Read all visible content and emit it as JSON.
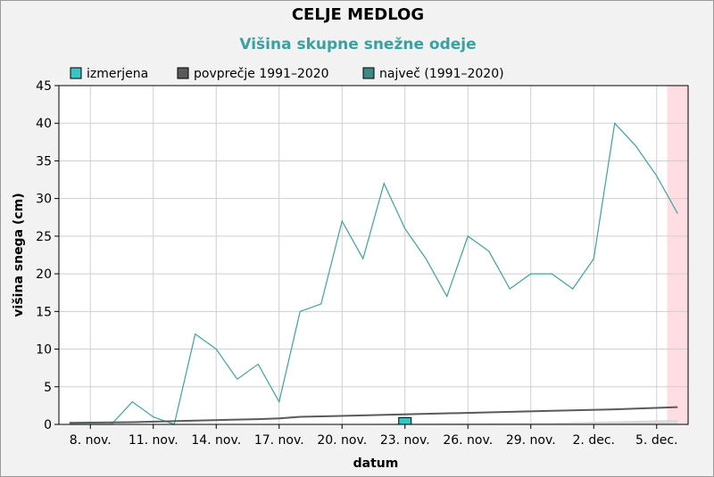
{
  "chart_data": {
    "type": "line",
    "title": "CELJE MEDLOG",
    "subtitle": "Višina skupne snežne odeje",
    "xlabel": "datum",
    "ylabel": "višina snega (cm)",
    "ylim": [
      0,
      45
    ],
    "yticks": [
      0,
      5,
      10,
      15,
      20,
      25,
      30,
      35,
      40,
      45
    ],
    "xticks": [
      {
        "day": 8,
        "label": "8. nov."
      },
      {
        "day": 11,
        "label": "11. nov."
      },
      {
        "day": 14,
        "label": "14. nov."
      },
      {
        "day": 17,
        "label": "17. nov."
      },
      {
        "day": 20,
        "label": "20. nov."
      },
      {
        "day": 23,
        "label": "23. nov."
      },
      {
        "day": 26,
        "label": "26. nov."
      },
      {
        "day": 29,
        "label": "29. nov."
      },
      {
        "day": 32,
        "label": "2. dec."
      },
      {
        "day": 35,
        "label": "5. dec."
      }
    ],
    "grid": true,
    "legend_position": "top",
    "highlight_region": {
      "from_day": 35.5,
      "to_day": 36.5,
      "color": "#ffdde3"
    },
    "series": [
      {
        "name": "izmerjena",
        "color": "#3fa39c",
        "legend_color": "#38c4c4",
        "points": [
          [
            7,
            0
          ],
          [
            8,
            0
          ],
          [
            9,
            0
          ],
          [
            10,
            3
          ],
          [
            11,
            1
          ],
          [
            12,
            0
          ],
          [
            13,
            12
          ],
          [
            14,
            10
          ],
          [
            15,
            6
          ],
          [
            16,
            8
          ],
          [
            17,
            3
          ],
          [
            18,
            15
          ],
          [
            19,
            16
          ],
          [
            20,
            27
          ],
          [
            21,
            22
          ],
          [
            22,
            32
          ],
          [
            23,
            26
          ],
          [
            24,
            22
          ],
          [
            25,
            17
          ],
          [
            26,
            25
          ],
          [
            27,
            23
          ],
          [
            28,
            18
          ],
          [
            29,
            20
          ],
          [
            30,
            20
          ],
          [
            31,
            18
          ],
          [
            32,
            22
          ],
          [
            33,
            40
          ],
          [
            34,
            37
          ],
          [
            35,
            33
          ],
          [
            36,
            28
          ]
        ]
      },
      {
        "name": "povprečje 1991–2020",
        "color": "#5a5a5a",
        "legend_color": "#5a5a5a",
        "points": [
          [
            7,
            0.2
          ],
          [
            10,
            0.3
          ],
          [
            13,
            0.5
          ],
          [
            16,
            0.7
          ],
          [
            17,
            0.8
          ],
          [
            18,
            1.0
          ],
          [
            21,
            1.2
          ],
          [
            24,
            1.4
          ],
          [
            27,
            1.6
          ],
          [
            30,
            1.8
          ],
          [
            33,
            2.0
          ],
          [
            36,
            2.3
          ]
        ]
      },
      {
        "name": "največ (1991–2020)",
        "color": "#3d8a84",
        "legend_color": "#3d8a84",
        "points": []
      }
    ],
    "baseline_band": {
      "color": "#d9d9d9",
      "points": [
        [
          7,
          0.0
        ],
        [
          20,
          0.05
        ],
        [
          30,
          0.2
        ],
        [
          36,
          0.6
        ]
      ]
    },
    "marker": {
      "day": 23,
      "value": 0.9,
      "color": "#38c4c4"
    }
  }
}
